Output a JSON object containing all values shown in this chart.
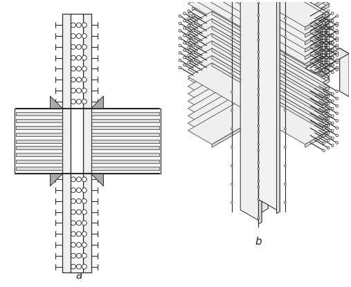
{
  "fig_width": 5.07,
  "fig_height": 4.15,
  "dpi": 100,
  "bg_color": "#ffffff",
  "line_color": "#2a2a2a",
  "label_a": "a",
  "label_b": "b",
  "label_fontsize": 11,
  "label_style": "italic"
}
